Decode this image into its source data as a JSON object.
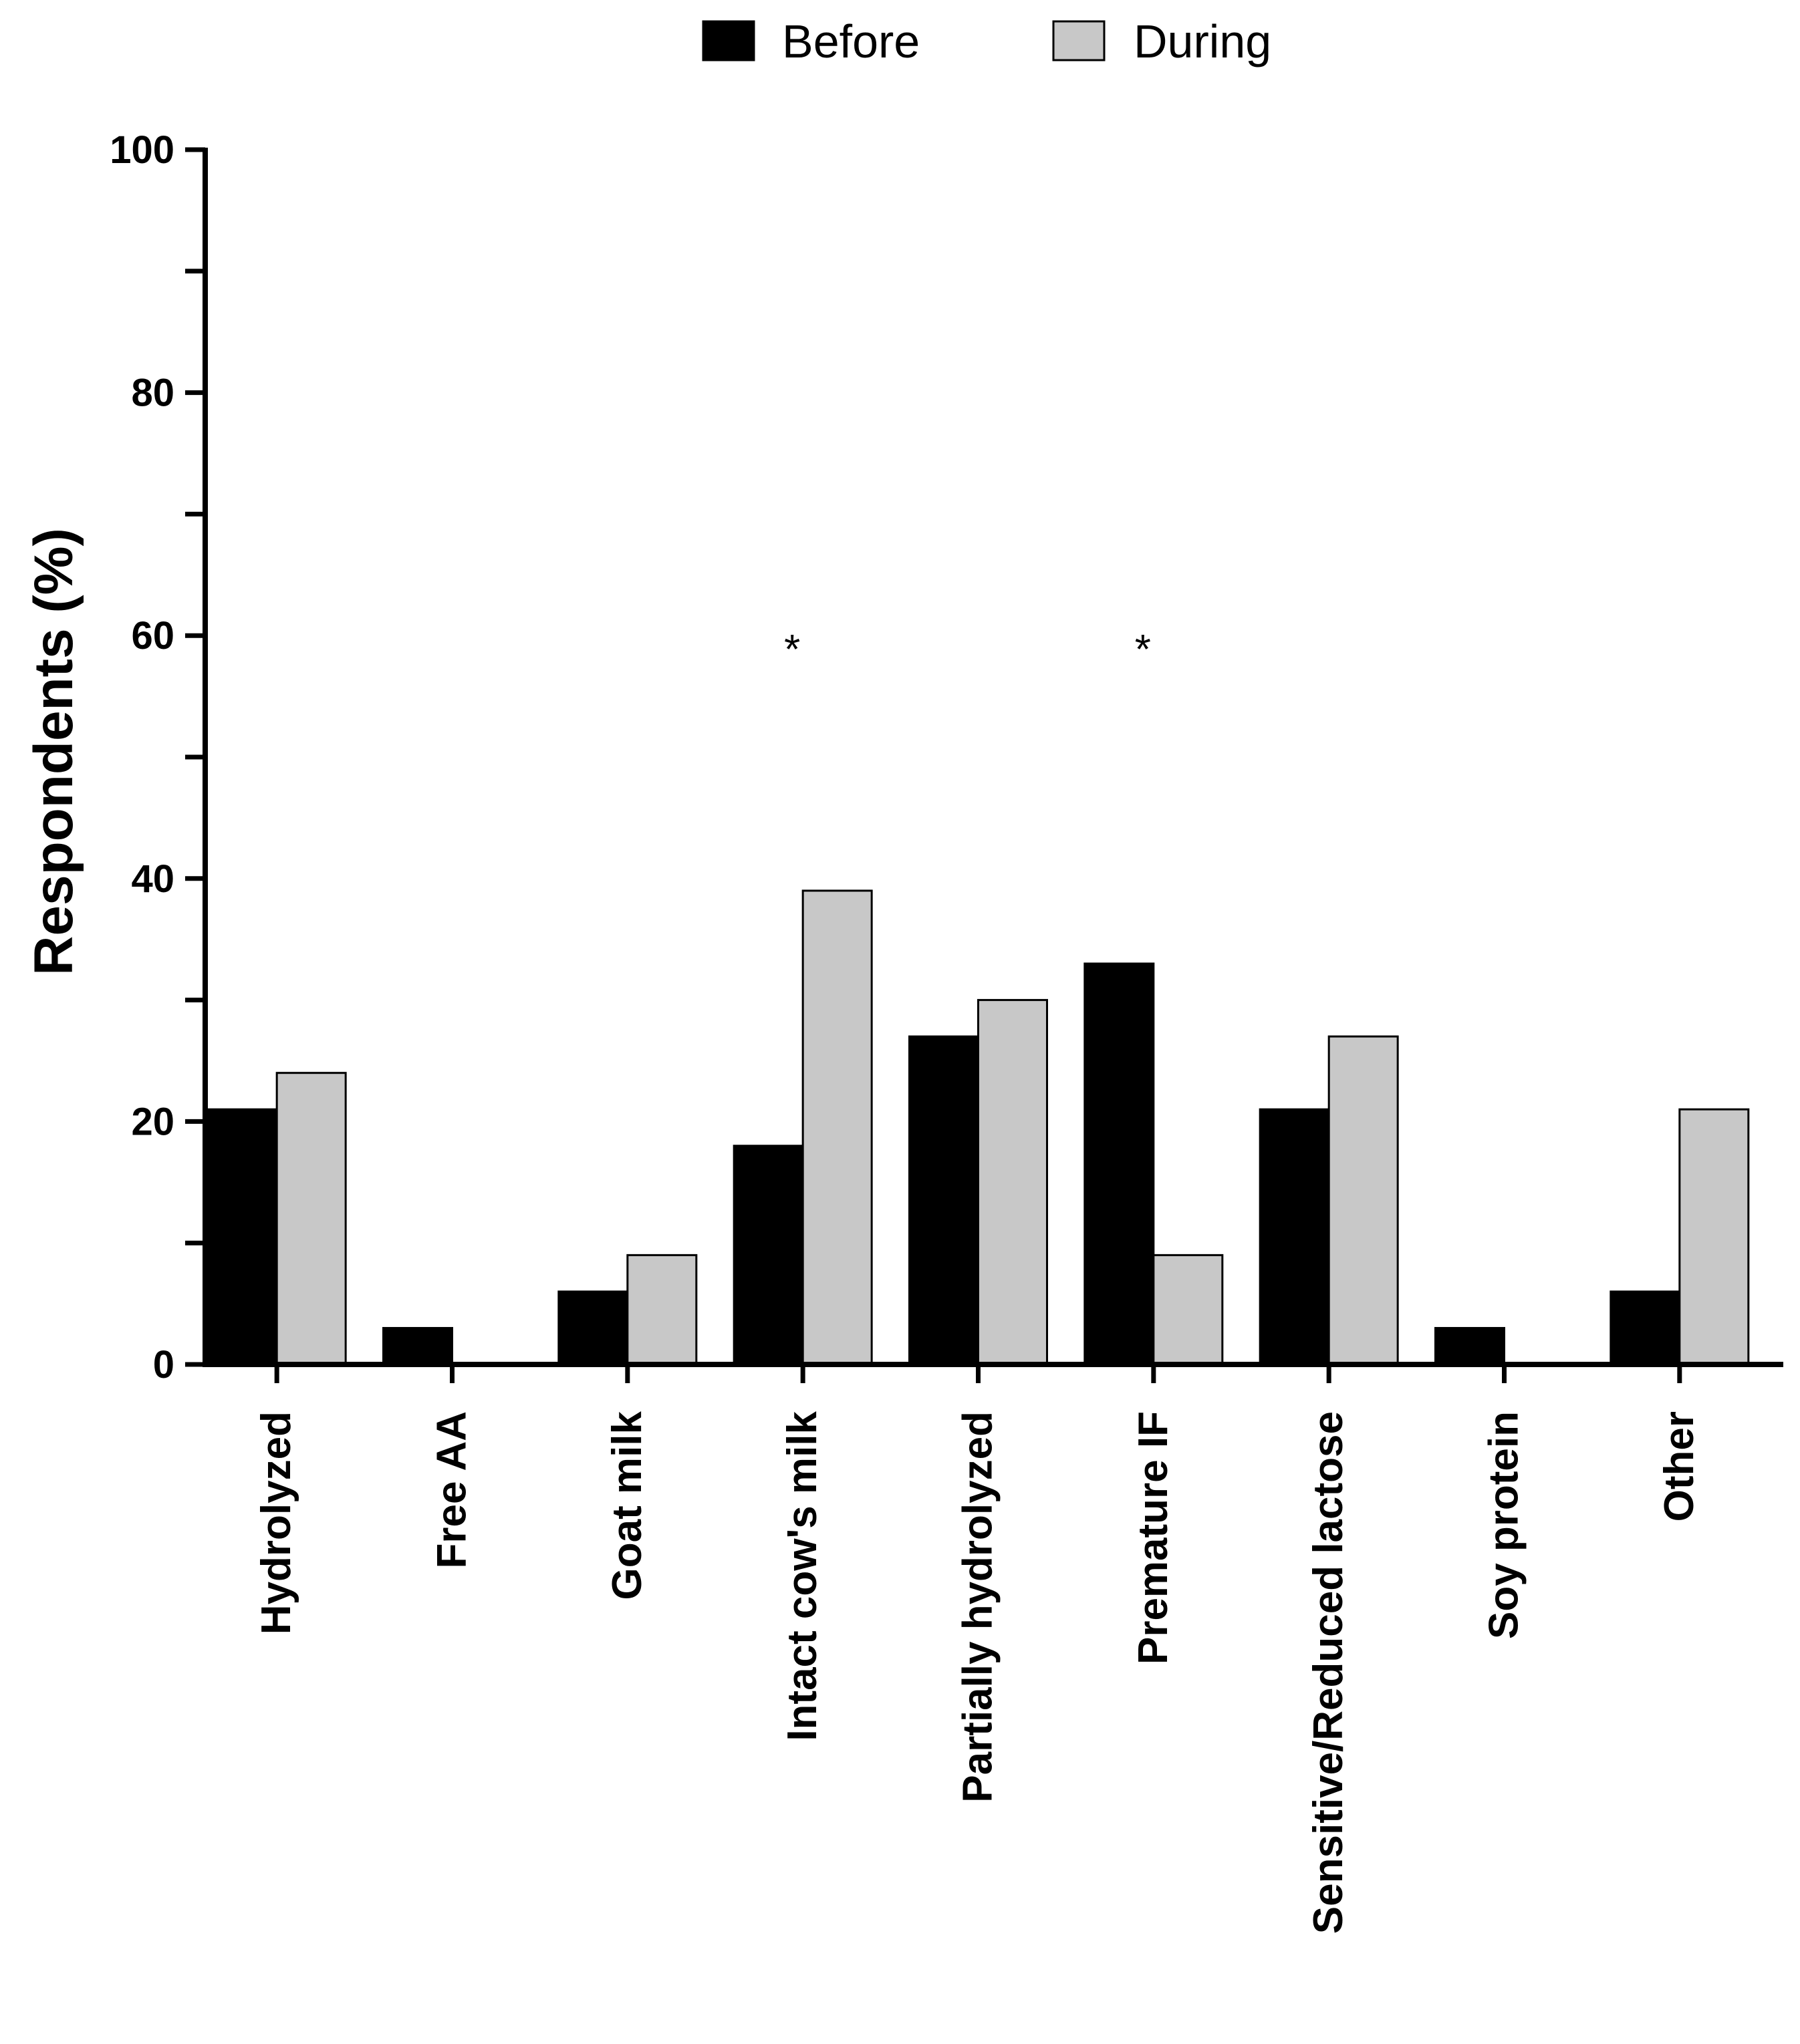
{
  "chart_data": {
    "type": "bar",
    "title": "",
    "xlabel": "",
    "ylabel": "Respondents (%)",
    "ylim": [
      0,
      100
    ],
    "yticks": [
      "0",
      "20",
      "40",
      "60",
      "80",
      "100"
    ],
    "categories": [
      "Hydrolyzed",
      "Free AA",
      "Goat milk",
      "Intact cow's milk",
      "Partially hydrolyzed",
      "Premature IF",
      "Sensitive/Reduced lactose",
      "Soy protein",
      "Other"
    ],
    "series": [
      {
        "name": "Before",
        "color": "#000000",
        "values": [
          21,
          3,
          6,
          18,
          27,
          33,
          21,
          3,
          6
        ]
      },
      {
        "name": "During",
        "color": "#c8c8c8",
        "values": [
          24,
          0,
          9,
          39,
          30,
          9,
          27,
          0,
          21
        ]
      }
    ],
    "annotations": [
      {
        "category": "Intact cow's milk",
        "text": "*",
        "y": 60
      },
      {
        "category": "Premature IF",
        "text": "*",
        "y": 60
      }
    ],
    "legend": "top-center",
    "grid": false
  }
}
